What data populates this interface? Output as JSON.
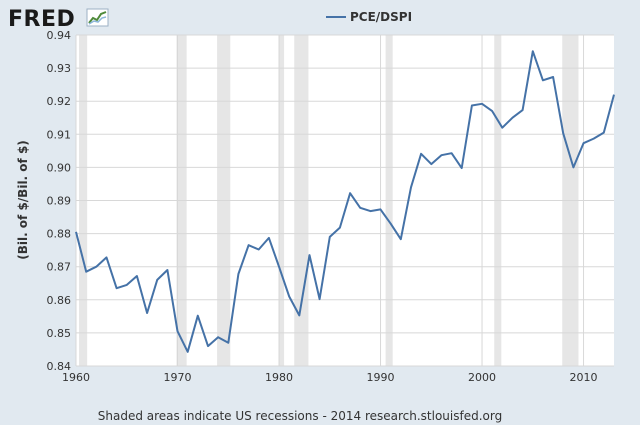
{
  "brand": {
    "name": "FRED",
    "logo_icon": "line-chart-icon"
  },
  "footnote": "Shaded areas indicate US recessions - 2014 research.stlouisfed.org",
  "colors": {
    "background": "#e1e9f0",
    "plot_background": "#ffffff",
    "series_line": "#4572a7",
    "recession_shade": "#e6e6e6",
    "gridline": "#d8d8d8"
  },
  "chart_data": {
    "type": "line",
    "title": "",
    "xlabel": "",
    "ylabel": "(Bil. of $/Bil. of $)",
    "xlim": [
      1960,
      2013
    ],
    "ylim": [
      0.84,
      0.94
    ],
    "x_ticks": [
      1960,
      1970,
      1980,
      1990,
      2000,
      2010
    ],
    "y_ticks": [
      0.84,
      0.85,
      0.86,
      0.87,
      0.88,
      0.89,
      0.9,
      0.91,
      0.92,
      0.93,
      0.94
    ],
    "y_tick_labels": [
      "0.84",
      "0.85",
      "0.86",
      "0.87",
      "0.88",
      "0.89",
      "0.90",
      "0.91",
      "0.92",
      "0.93",
      "0.94"
    ],
    "grid": true,
    "legend": "top-center",
    "recessions": [
      [
        1960.3,
        1961.1
      ],
      [
        1969.9,
        1970.9
      ],
      [
        1973.9,
        1975.2
      ],
      [
        1980.0,
        1980.5
      ],
      [
        1981.5,
        1982.9
      ],
      [
        1990.5,
        1991.2
      ],
      [
        2001.2,
        2001.9
      ],
      [
        2007.9,
        2009.5
      ]
    ],
    "series": [
      {
        "name": "PCE/DSPI",
        "x": [
          1960,
          1961,
          1962,
          1963,
          1964,
          1965,
          1966,
          1967,
          1968,
          1969,
          1970,
          1971,
          1972,
          1973,
          1974,
          1975,
          1976,
          1977,
          1978,
          1979,
          1980,
          1981,
          1982,
          1983,
          1984,
          1985,
          1986,
          1987,
          1988,
          1989,
          1990,
          1991,
          1992,
          1993,
          1994,
          1995,
          1996,
          1997,
          1998,
          1999,
          2000,
          2001,
          2002,
          2003,
          2004,
          2005,
          2006,
          2007,
          2008,
          2009,
          2010,
          2011,
          2012,
          2013
        ],
        "y": [
          0.8805,
          0.8685,
          0.87,
          0.8728,
          0.8635,
          0.8645,
          0.8672,
          0.856,
          0.866,
          0.869,
          0.8505,
          0.8443,
          0.8552,
          0.846,
          0.8487,
          0.847,
          0.8678,
          0.8765,
          0.8752,
          0.8787,
          0.87,
          0.861,
          0.8553,
          0.8735,
          0.8602,
          0.879,
          0.8818,
          0.8922,
          0.8878,
          0.8868,
          0.8873,
          0.883,
          0.8783,
          0.894,
          0.9041,
          0.901,
          0.9037,
          0.9043,
          0.8998,
          0.9187,
          0.9192,
          0.917,
          0.912,
          0.915,
          0.9173,
          0.9351,
          0.9263,
          0.9273,
          0.9103,
          0.9,
          0.9073,
          0.9087,
          0.9105,
          0.922
        ]
      }
    ]
  }
}
